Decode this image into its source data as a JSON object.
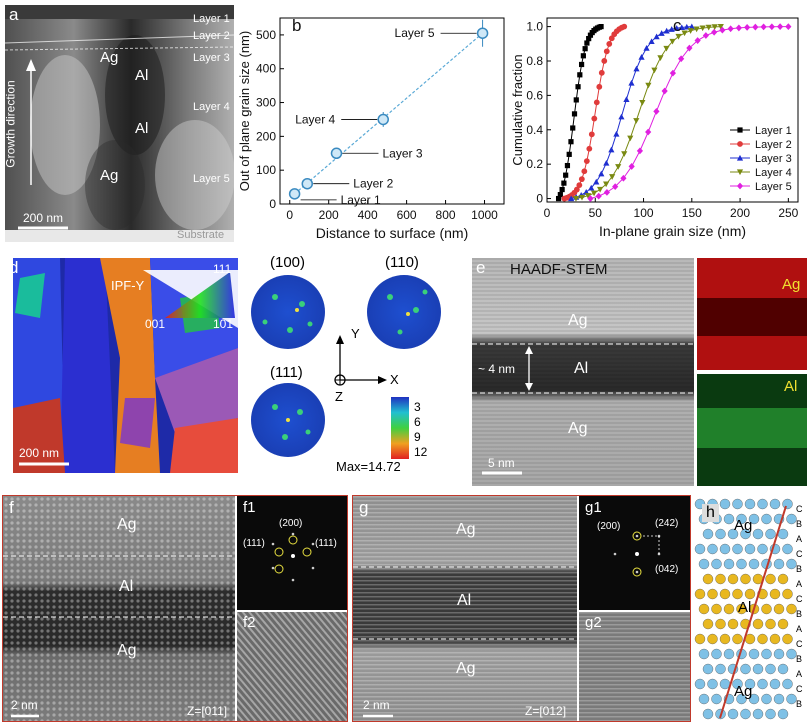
{
  "panel_a": {
    "label": "a",
    "layers": [
      "Layer 1",
      "Layer 2",
      "Layer 3",
      "Layer 4",
      "Layer 5"
    ],
    "grains": [
      "Ag",
      "Al",
      "Al",
      "Ag"
    ],
    "growth": "Growth direction",
    "scale": "200 nm",
    "substrate": "Substrate"
  },
  "panel_b": {
    "label": "b"
  },
  "panel_c": {
    "label": "c"
  },
  "panel_d": {
    "label": "d",
    "ipf": "IPF-Y",
    "corners": [
      "111",
      "001",
      "101"
    ],
    "scale": "200 nm",
    "poles": [
      "(100)",
      "(110)",
      "(111)"
    ],
    "axes": [
      "Y",
      "X",
      "Z"
    ],
    "legend": [
      "3",
      "6",
      "9",
      "12"
    ],
    "max": "Max=14.72"
  },
  "panel_e": {
    "label": "e",
    "title": "HAADF-STEM",
    "top": "Ag",
    "mid": "Al",
    "bot": "Ag",
    "thick": "~ 4 nm",
    "scale": "5 nm",
    "map1": "Ag",
    "map2": "Al"
  },
  "panel_f": {
    "label": "f",
    "top": "Ag",
    "mid": "Al",
    "bot": "Ag",
    "scale": "2 nm",
    "zone": "Z=[011]",
    "f1": "f1",
    "f2": "f2",
    "spots": [
      "(200)",
      "(111)",
      "(111)"
    ]
  },
  "panel_g": {
    "label": "g",
    "top": "Ag",
    "mid": "Al",
    "bot": "Ag",
    "scale": "2 nm",
    "zone": "Z=[012]",
    "g1": "g1",
    "g2": "g2",
    "spots": [
      "(200)",
      "(242)",
      "(042)"
    ]
  },
  "panel_h": {
    "label": "h",
    "top": "Ag",
    "mid": "Al",
    "bot": "Ag",
    "stack": [
      "C",
      "B",
      "A",
      "C",
      "B",
      "A",
      "C",
      "B",
      "A",
      "C",
      "B",
      "A",
      "C",
      "B"
    ]
  },
  "chart_data": [
    {
      "type": "line",
      "xlabel": "Distance to surface (nm)",
      "ylabel": "Out of plane grain size (nm)",
      "xlim": [
        -50,
        1100
      ],
      "ylim": [
        0,
        550
      ],
      "xticks": [
        0,
        200,
        400,
        600,
        800,
        1000
      ],
      "yticks": [
        0,
        100,
        200,
        300,
        400,
        500
      ],
      "series": [
        {
          "x": [
            25,
            90,
            240,
            480,
            990
          ],
          "values": [
            30,
            60,
            150,
            250,
            505
          ],
          "err": [
            6,
            10,
            12,
            22,
            40
          ],
          "labels": [
            "Layer 1",
            "Layer 2",
            "Layer 3",
            "Layer 4",
            "Layer 5"
          ]
        }
      ]
    },
    {
      "type": "line",
      "xlabel": "In-plane grain size (nm)",
      "ylabel": "Cumulative fraction",
      "xlim": [
        0,
        260
      ],
      "ylim": [
        -0.02,
        1.05
      ],
      "xticks": [
        0,
        50,
        100,
        150,
        200,
        250
      ],
      "yticks": [
        0,
        0.2,
        0.4,
        0.6,
        0.8,
        1.0
      ],
      "legend_position": "bottom-right",
      "series": [
        {
          "name": "Layer 1",
          "color": "#000000",
          "marker": "square",
          "mid": 28,
          "w": 6,
          "start": 12,
          "end": 56
        },
        {
          "name": "Layer 2",
          "color": "#e03b3b",
          "marker": "circle",
          "mid": 50,
          "w": 7,
          "start": 18,
          "end": 80
        },
        {
          "name": "Layer 3",
          "color": "#1f2fd0",
          "marker": "triangle",
          "mid": 78,
          "w": 13,
          "start": 25,
          "end": 150
        },
        {
          "name": "Layer 4",
          "color": "#7a8a12",
          "marker": "triangle-down",
          "mid": 95,
          "w": 15,
          "start": 30,
          "end": 180
        },
        {
          "name": "Layer 5",
          "color": "#e020e0",
          "marker": "diamond",
          "mid": 112,
          "w": 18,
          "start": 45,
          "end": 250
        }
      ]
    }
  ]
}
